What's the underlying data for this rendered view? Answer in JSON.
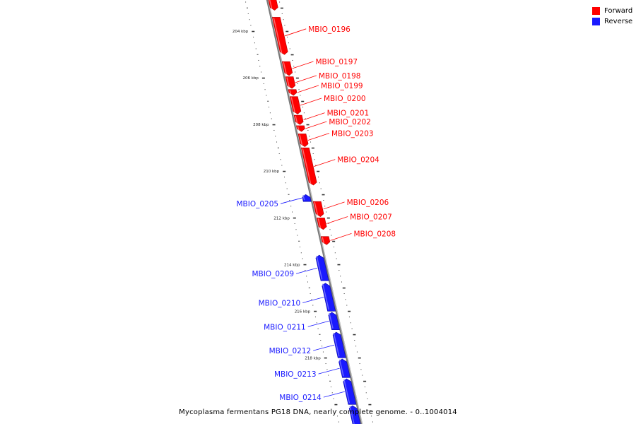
{
  "caption": "Mycoplasma fermentans PG18 DNA, nearly complete genome. - 0..1004014",
  "legend": [
    {
      "label": "Forward",
      "color": "#ff0000"
    },
    {
      "label": "Reverse",
      "color": "#1a1aff"
    }
  ],
  "colors": {
    "forward": "#ff0000",
    "reverse": "#1a1aff",
    "backbone": "#888888"
  },
  "scale": {
    "unit": "kbp",
    "range_kbp": [
      202.6,
      220.9
    ],
    "major_ticks_kbp": [
      204,
      206,
      208,
      210,
      212,
      214,
      216,
      218
    ]
  },
  "genes": [
    {
      "label": "",
      "strand": "forward",
      "start_kbp": 202.6,
      "end_kbp": 203.1
    },
    {
      "label": "MBIO_0196",
      "strand": "forward",
      "start_kbp": 203.4,
      "end_kbp": 205.0
    },
    {
      "label": "MBIO_0197",
      "strand": "forward",
      "start_kbp": 205.3,
      "end_kbp": 205.9
    },
    {
      "label": "MBIO_0198",
      "strand": "forward",
      "start_kbp": 205.95,
      "end_kbp": 206.45
    },
    {
      "label": "MBIO_0199",
      "strand": "forward",
      "start_kbp": 206.5,
      "end_kbp": 206.75
    },
    {
      "label": "MBIO_0200",
      "strand": "forward",
      "start_kbp": 206.8,
      "end_kbp": 207.55
    },
    {
      "label": "MBIO_0201",
      "strand": "forward",
      "start_kbp": 207.6,
      "end_kbp": 208.0
    },
    {
      "label": "MBIO_0202",
      "strand": "forward",
      "start_kbp": 208.05,
      "end_kbp": 208.3
    },
    {
      "label": "MBIO_0203",
      "strand": "forward",
      "start_kbp": 208.4,
      "end_kbp": 208.95
    },
    {
      "label": "MBIO_0204",
      "strand": "forward",
      "start_kbp": 209.0,
      "end_kbp": 210.6
    },
    {
      "label": "MBIO_0205",
      "strand": "reverse",
      "start_kbp": 211.0,
      "end_kbp": 211.3
    },
    {
      "label": "MBIO_0206",
      "strand": "forward",
      "start_kbp": 211.3,
      "end_kbp": 211.95
    },
    {
      "label": "MBIO_0207",
      "strand": "forward",
      "start_kbp": 212.0,
      "end_kbp": 212.5
    },
    {
      "label": "MBIO_0208",
      "strand": "forward",
      "start_kbp": 212.8,
      "end_kbp": 213.15
    },
    {
      "label": "MBIO_0209",
      "strand": "reverse",
      "start_kbp": 213.6,
      "end_kbp": 214.7
    },
    {
      "label": "MBIO_0210",
      "strand": "reverse",
      "start_kbp": 214.8,
      "end_kbp": 216.0
    },
    {
      "label": "MBIO_0211",
      "strand": "reverse",
      "start_kbp": 216.05,
      "end_kbp": 216.8
    },
    {
      "label": "MBIO_0212",
      "strand": "reverse",
      "start_kbp": 216.9,
      "end_kbp": 218.0
    },
    {
      "label": "MBIO_0213",
      "strand": "reverse",
      "start_kbp": 218.05,
      "end_kbp": 218.85
    },
    {
      "label": "MBIO_0214",
      "strand": "reverse",
      "start_kbp": 218.9,
      "end_kbp": 220.0
    },
    {
      "label": "",
      "strand": "reverse",
      "start_kbp": 220.05,
      "end_kbp": 220.9
    }
  ]
}
